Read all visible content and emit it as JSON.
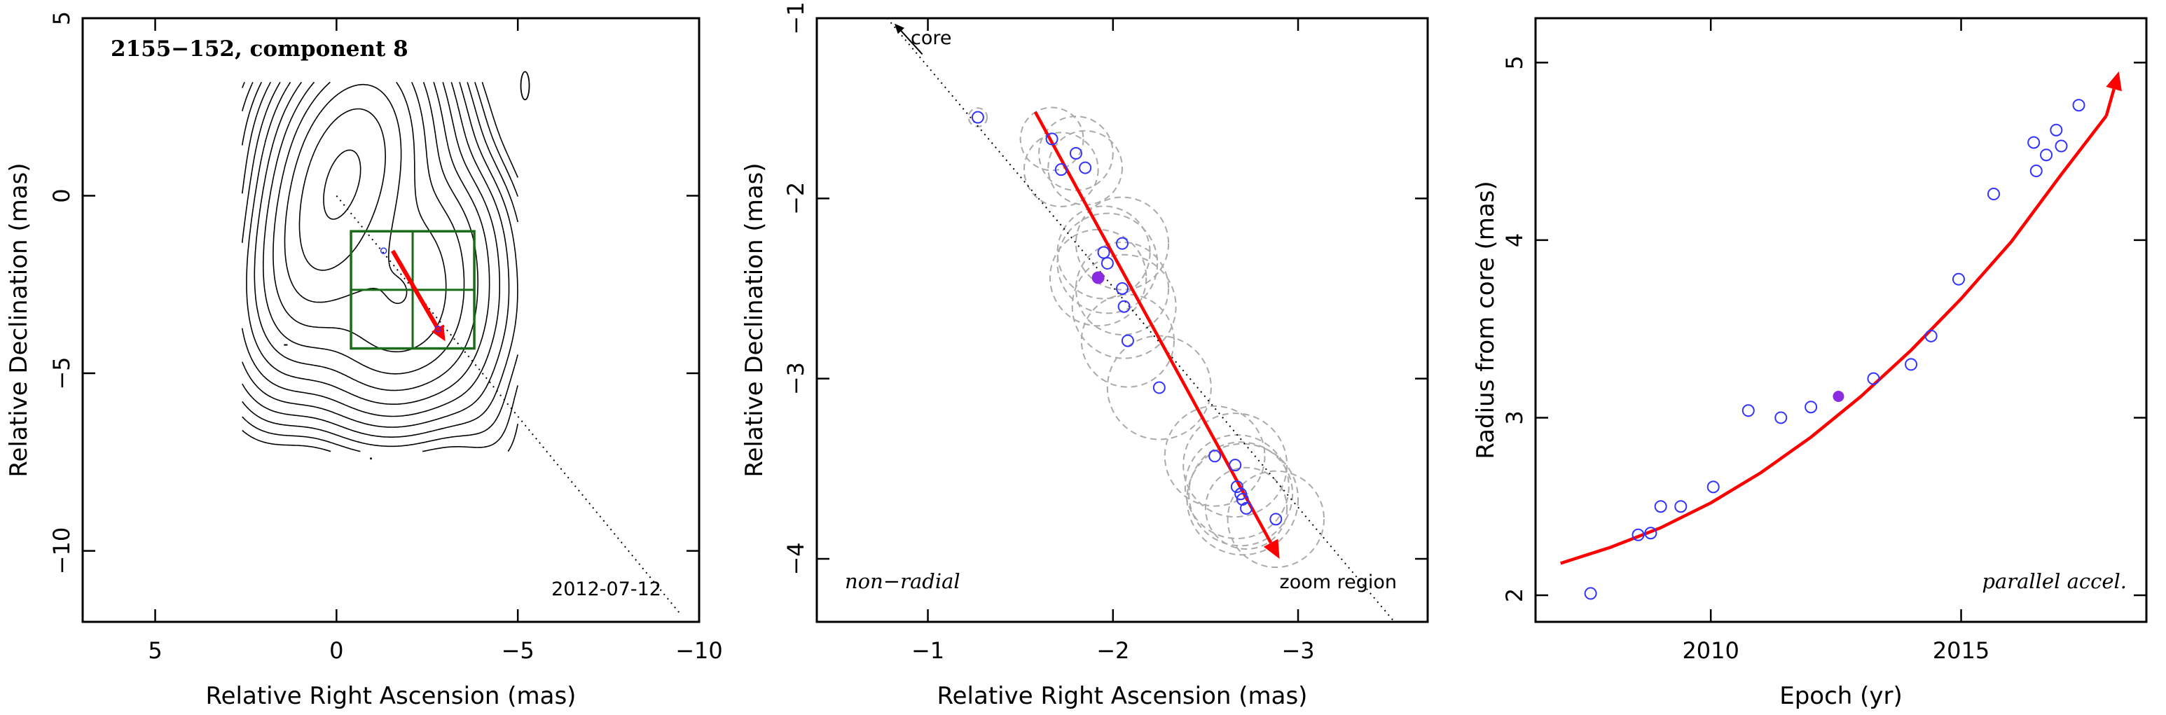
{
  "chart_data": [
    {
      "type": "contour",
      "title": "2155−152, component 8",
      "date": "2012-07-12",
      "xlabel": "Relative Right Ascension (mas)",
      "ylabel": "Relative Declination (mas)",
      "xlim": [
        7,
        -10
      ],
      "ylim": [
        -12,
        5
      ],
      "xticks": [
        5,
        0,
        -5,
        -10
      ],
      "yticks": [
        5,
        0,
        -5,
        -10
      ],
      "xtick_labels": [
        "5",
        "0",
        "−5",
        "−10"
      ],
      "ytick_labels": [
        "5",
        "0",
        "−5",
        "−10"
      ],
      "core": [
        0,
        0
      ],
      "contour_levels": 16,
      "contour_color": "#000000",
      "box_color": "#1a6b1a",
      "zoom_box": {
        "x": [
          -0.4,
          -3.8
        ],
        "y": [
          -1.0,
          -4.3
        ]
      },
      "arrow": {
        "from": [
          -1.55,
          -1.55
        ],
        "to": [
          -3.0,
          -4.1
        ],
        "color": "#ff0000"
      },
      "markers": [
        [
          -1.3,
          -1.55
        ],
        [
          -2.8,
          -3.75
        ]
      ],
      "direction_line": {
        "from": [
          0,
          0
        ],
        "to": [
          -9.5,
          -11.8
        ]
      }
    },
    {
      "type": "scatter",
      "xlabel": "Relative Right Ascension (mas)",
      "ylabel": "Relative Declination (mas)",
      "xlim": [
        -0.4,
        -3.7
      ],
      "ylim": [
        -4.35,
        -1.0
      ],
      "xticks": [
        -1,
        -2,
        -3
      ],
      "yticks": [
        -1,
        -2,
        -3,
        -4
      ],
      "xtick_labels": [
        "−1",
        "−2",
        "−3"
      ],
      "ytick_labels": [
        "−1",
        "−2",
        "−3",
        "−4"
      ],
      "annotations": {
        "core": "core",
        "zoom": "zoom region",
        "label": "non−radial"
      },
      "marker_color": "#3333ff",
      "highlight_color": "#8a2be2",
      "error_color": "#aaaaaa",
      "points": [
        [
          -1.27,
          -1.55
        ],
        [
          -1.67,
          -1.67
        ],
        [
          -1.72,
          -1.84
        ],
        [
          -1.8,
          -1.75
        ],
        [
          -1.85,
          -1.83
        ],
        [
          -1.95,
          -2.3
        ],
        [
          -1.97,
          -2.36
        ],
        [
          -2.05,
          -2.25
        ],
        [
          -2.05,
          -2.5
        ],
        [
          -2.06,
          -2.6
        ],
        [
          -2.08,
          -2.79
        ],
        [
          -2.25,
          -3.05
        ],
        [
          -2.55,
          -3.43
        ],
        [
          -2.66,
          -3.48
        ],
        [
          -2.67,
          -3.6
        ],
        [
          -2.69,
          -3.64
        ],
        [
          -2.7,
          -3.67
        ],
        [
          -2.72,
          -3.72
        ],
        [
          -2.88,
          -3.78
        ]
      ],
      "error_radii": [
        0.05,
        0.17,
        0.2,
        0.2,
        0.2,
        0.25,
        0.27,
        0.25,
        0.25,
        0.28,
        0.25,
        0.28,
        0.27,
        0.28,
        0.28,
        0.28,
        0.3,
        0.22,
        0.26
      ],
      "highlight": [
        -1.92,
        -2.44
      ],
      "highlight_radius": 0.26,
      "arrow": {
        "from": [
          -1.58,
          -1.52
        ],
        "to": [
          -2.9,
          -4.0
        ],
        "color": "#ff0000"
      },
      "direction_line": {
        "from": [
          -0.78,
          -1.0
        ],
        "to": [
          -3.52,
          -4.35
        ]
      },
      "core_arrow": {
        "from": [
          -0.97,
          -1.2
        ],
        "to": [
          -0.82,
          -1.03
        ]
      }
    },
    {
      "type": "scatter",
      "xlabel": "Epoch (yr)",
      "ylabel": "Radius from core (mas)",
      "xlim": [
        2006.5,
        2018.7
      ],
      "ylim": [
        1.85,
        5.25
      ],
      "xticks": [
        2010,
        2015
      ],
      "yticks": [
        2,
        3,
        4,
        5
      ],
      "xtick_labels": [
        "2010",
        "2015"
      ],
      "ytick_labels": [
        "2",
        "3",
        "4",
        "5"
      ],
      "annotation": "parallel accel.",
      "marker_color": "#3333ff",
      "highlight_color": "#8a2be2",
      "fit_color": "#ff0000",
      "points": [
        [
          2007.6,
          2.01
        ],
        [
          2008.55,
          2.34
        ],
        [
          2008.8,
          2.35
        ],
        [
          2009.0,
          2.5
        ],
        [
          2009.4,
          2.5
        ],
        [
          2010.05,
          2.61
        ],
        [
          2010.75,
          3.04
        ],
        [
          2011.4,
          3.0
        ],
        [
          2012.0,
          3.06
        ],
        [
          2013.25,
          3.22
        ],
        [
          2014.0,
          3.3
        ],
        [
          2014.4,
          3.46
        ],
        [
          2014.95,
          3.78
        ],
        [
          2015.65,
          4.26
        ],
        [
          2016.45,
          4.55
        ],
        [
          2016.5,
          4.39
        ],
        [
          2016.7,
          4.48
        ],
        [
          2016.9,
          4.62
        ],
        [
          2017.0,
          4.53
        ],
        [
          2017.35,
          4.76
        ]
      ],
      "highlight": [
        2012.55,
        3.12
      ],
      "fit": {
        "x": [
          2007.0,
          2008.0,
          2009.0,
          2010.0,
          2011.0,
          2012.0,
          2013.0,
          2014.0,
          2015.0,
          2016.0,
          2017.0,
          2017.9
        ],
        "y": [
          2.18,
          2.27,
          2.38,
          2.52,
          2.69,
          2.89,
          3.12,
          3.38,
          3.67,
          3.99,
          4.37,
          4.7
        ]
      },
      "arrow_tip": [
        2018.15,
        4.95
      ]
    }
  ]
}
